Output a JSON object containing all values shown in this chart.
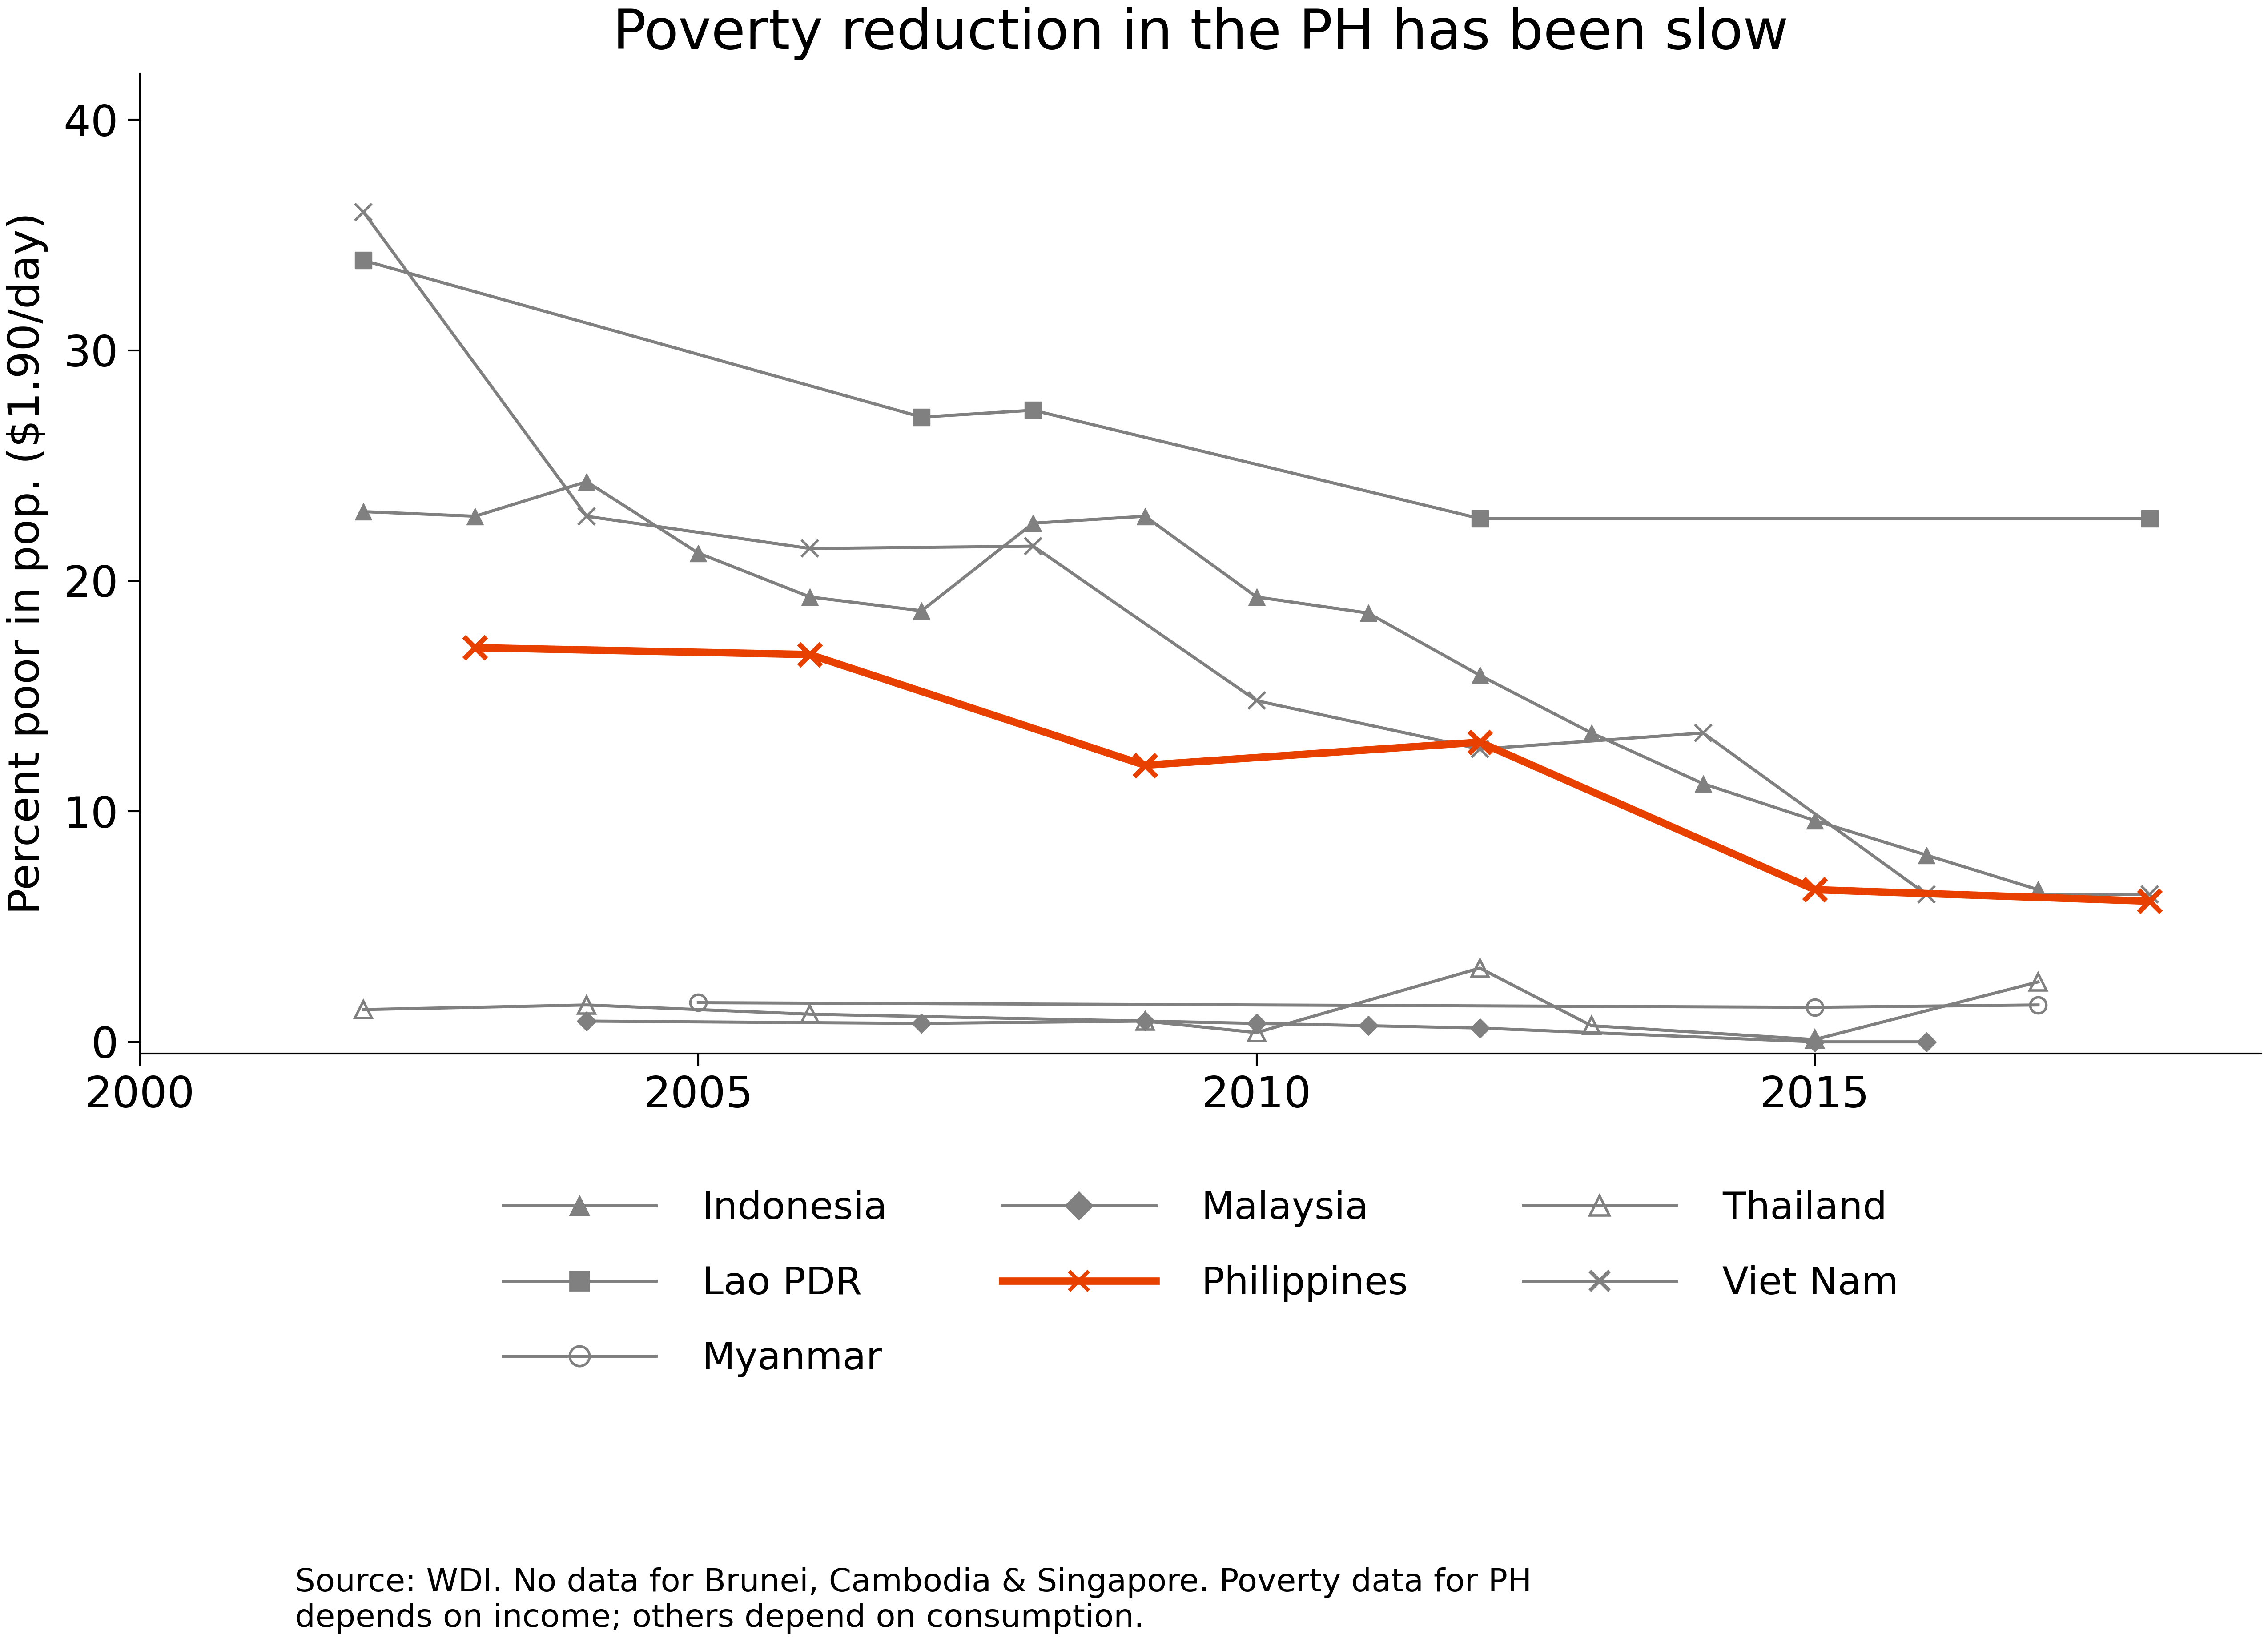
{
  "title": "Poverty reduction in the PH has been slow",
  "ylabel": "Percent poor in pop. ($1.90/day)",
  "xlim": [
    2000,
    2019
  ],
  "ylim": [
    -0.5,
    42
  ],
  "yticks": [
    0,
    10,
    20,
    30,
    40
  ],
  "xticks": [
    2000,
    2005,
    2010,
    2015
  ],
  "background_color": "#ffffff",
  "source_text": "Source: WDI. No data for Brunei, Cambodia & Singapore. Poverty data for PH\ndepends on income; others depend on consumption.",
  "series": {
    "Indonesia": {
      "x": [
        2002,
        2003,
        2004,
        2005,
        2006,
        2007,
        2008,
        2009,
        2010,
        2011,
        2012,
        2013,
        2014,
        2015,
        2016,
        2017
      ],
      "y": [
        23.0,
        22.8,
        24.3,
        21.2,
        19.3,
        18.7,
        22.5,
        22.8,
        19.3,
        18.6,
        15.9,
        13.4,
        11.2,
        9.6,
        8.1,
        6.6
      ],
      "color": "#808080",
      "linewidth": 5,
      "marker": "^",
      "markersize": 28,
      "linestyle": "-",
      "zorder": 2
    },
    "Lao PDR": {
      "x": [
        2002,
        2007,
        2008,
        2012,
        2018
      ],
      "y": [
        33.9,
        27.1,
        27.4,
        22.7,
        22.7
      ],
      "color": "#808080",
      "linewidth": 5,
      "marker": "s",
      "markersize": 28,
      "linestyle": "-",
      "zorder": 2
    },
    "Malaysia": {
      "x": [
        2004,
        2007,
        2009,
        2010,
        2011,
        2012,
        2015,
        2016
      ],
      "y": [
        0.9,
        0.8,
        0.9,
        0.8,
        0.7,
        0.6,
        0.0,
        0.0
      ],
      "color": "#808080",
      "linewidth": 5,
      "marker": "D",
      "markersize": 22,
      "linestyle": "-",
      "zorder": 2
    },
    "Philippines": {
      "x": [
        2003,
        2006,
        2009,
        2012,
        2015,
        2018
      ],
      "y": [
        17.1,
        16.8,
        12.0,
        13.0,
        6.6,
        6.1
      ],
      "color": "#e84000",
      "linewidth": 12,
      "marker": "x",
      "markersize": 36,
      "markeredgewidth": 8,
      "linestyle": "-",
      "zorder": 5
    },
    "Myanmar": {
      "x": [
        2005,
        2015,
        2017
      ],
      "y": [
        1.7,
        1.5,
        1.6
      ],
      "color": "#808080",
      "linewidth": 5,
      "marker": "o",
      "markersize": 26,
      "linestyle": "-",
      "zorder": 2,
      "markerfacecolor": "none",
      "markeredgewidth": 4
    },
    "Thailand": {
      "x": [
        2002,
        2004,
        2006,
        2009,
        2010,
        2012,
        2013,
        2015,
        2017
      ],
      "y": [
        1.4,
        1.6,
        1.2,
        0.9,
        0.4,
        3.2,
        0.7,
        0.1,
        2.6
      ],
      "color": "#808080",
      "linewidth": 5,
      "marker": "^",
      "markersize": 28,
      "linestyle": "-",
      "zorder": 2,
      "markerfacecolor": "none",
      "markeredgewidth": 4
    },
    "Viet Nam": {
      "x": [
        2002,
        2004,
        2006,
        2008,
        2010,
        2012,
        2014,
        2016,
        2018
      ],
      "y": [
        36.0,
        22.8,
        21.4,
        21.5,
        14.8,
        12.7,
        13.4,
        6.4,
        6.4
      ],
      "color": "#808080",
      "linewidth": 5,
      "marker": "x",
      "markersize": 28,
      "markeredgewidth": 4,
      "linestyle": "-",
      "zorder": 2
    }
  },
  "title_fontsize": 90,
  "label_fontsize": 70,
  "tick_fontsize": 70,
  "legend_fontsize": 62,
  "source_fontsize": 52
}
